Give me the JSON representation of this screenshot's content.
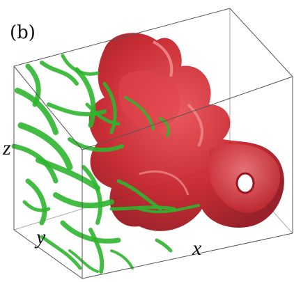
{
  "panel_label": "(b)",
  "axes": {
    "x": "x",
    "y": "y",
    "z": "z"
  }
}
